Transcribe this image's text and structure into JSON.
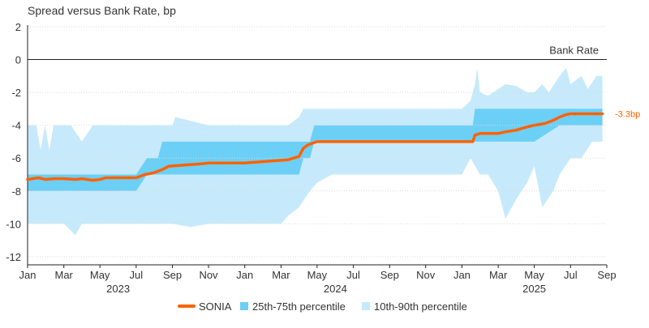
{
  "chart_data": {
    "type": "area",
    "title": "Spread versus Bank Rate, bp",
    "xlabel": "",
    "ylabel": "",
    "ylim": [
      -12.5,
      2
    ],
    "y_ticks": [
      2,
      0,
      -2,
      -4,
      -6,
      -8,
      -10,
      -12
    ],
    "x_range": [
      2023.0,
      2025.667
    ],
    "x_ticks": [
      {
        "label": "Jan",
        "x": 2023.0
      },
      {
        "label": "Mar",
        "x": 2023.167
      },
      {
        "label": "May",
        "x": 2023.333
      },
      {
        "label": "Jul",
        "x": 2023.5
      },
      {
        "label": "Sep",
        "x": 2023.667
      },
      {
        "label": "Nov",
        "x": 2023.833
      },
      {
        "label": "Jan",
        "x": 2024.0
      },
      {
        "label": "Mar",
        "x": 2024.167
      },
      {
        "label": "May",
        "x": 2024.333
      },
      {
        "label": "Jul",
        "x": 2024.5
      },
      {
        "label": "Sep",
        "x": 2024.667
      },
      {
        "label": "Nov",
        "x": 2024.833
      },
      {
        "label": "Jan",
        "x": 2025.0
      },
      {
        "label": "Mar",
        "x": 2025.167
      },
      {
        "label": "May",
        "x": 2025.333
      },
      {
        "label": "Jul",
        "x": 2025.5
      },
      {
        "label": "Sep",
        "x": 2025.667
      }
    ],
    "year_labels": [
      {
        "label": "2023",
        "x": 2023.417
      },
      {
        "label": "2024",
        "x": 2024.417
      },
      {
        "label": "2025",
        "x": 2025.333
      }
    ],
    "reference_line": {
      "label": "Bank Rate",
      "y": 0
    },
    "end_label": "-3.3bp",
    "series": [
      {
        "name": "SONIA",
        "color": "#ff6200",
        "points": [
          [
            2023.0,
            -7.3
          ],
          [
            2023.05,
            -7.2
          ],
          [
            2023.083,
            -7.3
          ],
          [
            2023.12,
            -7.25
          ],
          [
            2023.167,
            -7.25
          ],
          [
            2023.22,
            -7.3
          ],
          [
            2023.25,
            -7.25
          ],
          [
            2023.3,
            -7.35
          ],
          [
            2023.333,
            -7.3
          ],
          [
            2023.36,
            -7.2
          ],
          [
            2023.4,
            -7.2
          ],
          [
            2023.45,
            -7.2
          ],
          [
            2023.5,
            -7.2
          ],
          [
            2023.54,
            -7.0
          ],
          [
            2023.58,
            -6.9
          ],
          [
            2023.62,
            -6.7
          ],
          [
            2023.65,
            -6.5
          ],
          [
            2023.7,
            -6.45
          ],
          [
            2023.75,
            -6.4
          ],
          [
            2023.8,
            -6.35
          ],
          [
            2023.833,
            -6.3
          ],
          [
            2023.87,
            -6.3
          ],
          [
            2023.92,
            -6.3
          ],
          [
            2023.96,
            -6.3
          ],
          [
            2024.0,
            -6.3
          ],
          [
            2024.05,
            -6.25
          ],
          [
            2024.1,
            -6.2
          ],
          [
            2024.15,
            -6.15
          ],
          [
            2024.2,
            -6.1
          ],
          [
            2024.25,
            -5.9
          ],
          [
            2024.27,
            -5.4
          ],
          [
            2024.29,
            -5.2
          ],
          [
            2024.31,
            -5.1
          ],
          [
            2024.333,
            -5.0
          ],
          [
            2024.5,
            -5.0
          ],
          [
            2024.667,
            -5.0
          ],
          [
            2024.833,
            -5.0
          ],
          [
            2025.0,
            -5.0
          ],
          [
            2025.05,
            -5.0
          ],
          [
            2025.06,
            -4.6
          ],
          [
            2025.083,
            -4.5
          ],
          [
            2025.12,
            -4.5
          ],
          [
            2025.167,
            -4.5
          ],
          [
            2025.2,
            -4.4
          ],
          [
            2025.25,
            -4.3
          ],
          [
            2025.3,
            -4.1
          ],
          [
            2025.333,
            -4.0
          ],
          [
            2025.38,
            -3.9
          ],
          [
            2025.42,
            -3.7
          ],
          [
            2025.45,
            -3.5
          ],
          [
            2025.48,
            -3.35
          ],
          [
            2025.5,
            -3.3
          ],
          [
            2025.6,
            -3.3
          ],
          [
            2025.647,
            -3.3
          ]
        ]
      },
      {
        "name": "25th-75th percentile",
        "color": "#6ccff6",
        "upper": [
          [
            2023.0,
            -7.0
          ],
          [
            2023.167,
            -7.0
          ],
          [
            2023.333,
            -7.0
          ],
          [
            2023.5,
            -7.0
          ],
          [
            2023.55,
            -6.0
          ],
          [
            2023.6,
            -6.0
          ],
          [
            2023.62,
            -5.0
          ],
          [
            2023.833,
            -5.0
          ],
          [
            2024.0,
            -5.0
          ],
          [
            2024.25,
            -5.0
          ],
          [
            2024.3,
            -5.0
          ],
          [
            2024.32,
            -4.0
          ],
          [
            2024.5,
            -4.0
          ],
          [
            2024.833,
            -4.0
          ],
          [
            2025.0,
            -4.0
          ],
          [
            2025.05,
            -4.0
          ],
          [
            2025.06,
            -3.0
          ],
          [
            2025.333,
            -3.0
          ],
          [
            2025.5,
            -3.0
          ],
          [
            2025.647,
            -3.0
          ]
        ],
        "lower": [
          [
            2023.0,
            -8.0
          ],
          [
            2023.167,
            -8.0
          ],
          [
            2023.333,
            -8.0
          ],
          [
            2023.5,
            -8.0
          ],
          [
            2023.55,
            -7.0
          ],
          [
            2023.62,
            -7.0
          ],
          [
            2023.833,
            -7.0
          ],
          [
            2024.0,
            -7.0
          ],
          [
            2024.25,
            -7.0
          ],
          [
            2024.27,
            -6.0
          ],
          [
            2024.3,
            -6.0
          ],
          [
            2024.32,
            -5.0
          ],
          [
            2024.833,
            -5.0
          ],
          [
            2025.0,
            -5.0
          ],
          [
            2025.05,
            -5.0
          ],
          [
            2025.06,
            -5.0
          ],
          [
            2025.333,
            -5.0
          ],
          [
            2025.45,
            -4.0
          ],
          [
            2025.647,
            -4.0
          ]
        ]
      },
      {
        "name": "10th-90th percentile",
        "color": "#c6eafb",
        "upper": [
          [
            2023.0,
            -4.0
          ],
          [
            2023.04,
            -4.0
          ],
          [
            2023.06,
            -5.5
          ],
          [
            2023.08,
            -4.0
          ],
          [
            2023.1,
            -5.5
          ],
          [
            2023.12,
            -4.0
          ],
          [
            2023.2,
            -4.0
          ],
          [
            2023.25,
            -5.0
          ],
          [
            2023.3,
            -4.0
          ],
          [
            2023.333,
            -4.0
          ],
          [
            2023.5,
            -4.0
          ],
          [
            2023.667,
            -4.0
          ],
          [
            2023.68,
            -3.5
          ],
          [
            2023.833,
            -4.0
          ],
          [
            2024.0,
            -4.0
          ],
          [
            2024.1,
            -4.0
          ],
          [
            2024.2,
            -4.0
          ],
          [
            2024.25,
            -3.5
          ],
          [
            2024.27,
            -3.0
          ],
          [
            2024.333,
            -3.0
          ],
          [
            2024.5,
            -3.0
          ],
          [
            2024.833,
            -3.0
          ],
          [
            2025.0,
            -3.0
          ],
          [
            2025.04,
            -2.5
          ],
          [
            2025.06,
            -1.5
          ],
          [
            2025.07,
            -0.5
          ],
          [
            2025.083,
            -2.0
          ],
          [
            2025.12,
            -2.2
          ],
          [
            2025.167,
            -1.8
          ],
          [
            2025.2,
            -1.5
          ],
          [
            2025.25,
            -1.6
          ],
          [
            2025.3,
            -2.0
          ],
          [
            2025.333,
            -2.0
          ],
          [
            2025.37,
            -1.5
          ],
          [
            2025.4,
            -2.0
          ],
          [
            2025.45,
            -1.0
          ],
          [
            2025.48,
            -0.5
          ],
          [
            2025.5,
            -1.5
          ],
          [
            2025.55,
            -1.0
          ],
          [
            2025.58,
            -1.8
          ],
          [
            2025.62,
            -1.0
          ],
          [
            2025.647,
            -1.0
          ]
        ],
        "lower": [
          [
            2023.0,
            -10.0
          ],
          [
            2023.05,
            -10.0
          ],
          [
            2023.167,
            -10.0
          ],
          [
            2023.22,
            -10.7
          ],
          [
            2023.25,
            -10.0
          ],
          [
            2023.333,
            -10.0
          ],
          [
            2023.5,
            -10.0
          ],
          [
            2023.667,
            -10.0
          ],
          [
            2023.75,
            -10.2
          ],
          [
            2023.833,
            -10.0
          ],
          [
            2024.0,
            -10.0
          ],
          [
            2024.1,
            -10.0
          ],
          [
            2024.167,
            -10.0
          ],
          [
            2024.2,
            -9.5
          ],
          [
            2024.25,
            -9.0
          ],
          [
            2024.3,
            -8.0
          ],
          [
            2024.333,
            -7.5
          ],
          [
            2024.4,
            -7.0
          ],
          [
            2024.5,
            -7.0
          ],
          [
            2024.667,
            -7.0
          ],
          [
            2024.833,
            -7.0
          ],
          [
            2025.0,
            -7.0
          ],
          [
            2025.04,
            -6.0
          ],
          [
            2025.083,
            -7.0
          ],
          [
            2025.12,
            -7.0
          ],
          [
            2025.167,
            -8.0
          ],
          [
            2025.2,
            -9.7
          ],
          [
            2025.25,
            -8.5
          ],
          [
            2025.3,
            -7.5
          ],
          [
            2025.333,
            -6.5
          ],
          [
            2025.37,
            -9.0
          ],
          [
            2025.42,
            -8.0
          ],
          [
            2025.45,
            -7.0
          ],
          [
            2025.5,
            -6.0
          ],
          [
            2025.55,
            -6.0
          ],
          [
            2025.6,
            -5.0
          ],
          [
            2025.647,
            -5.0
          ]
        ]
      }
    ],
    "legend": {
      "position": "bottom",
      "items": [
        {
          "label": "SONIA",
          "kind": "line",
          "color": "#ff6200"
        },
        {
          "label": "25th-75th percentile",
          "kind": "box",
          "color": "#6ccff6"
        },
        {
          "label": "10th-90th percentile",
          "kind": "box",
          "color": "#c6eafb"
        }
      ]
    },
    "colors": {
      "axis": "#222222",
      "grid": "#d9d9d9",
      "text": "#333333",
      "end_label": "#ff6200"
    }
  }
}
